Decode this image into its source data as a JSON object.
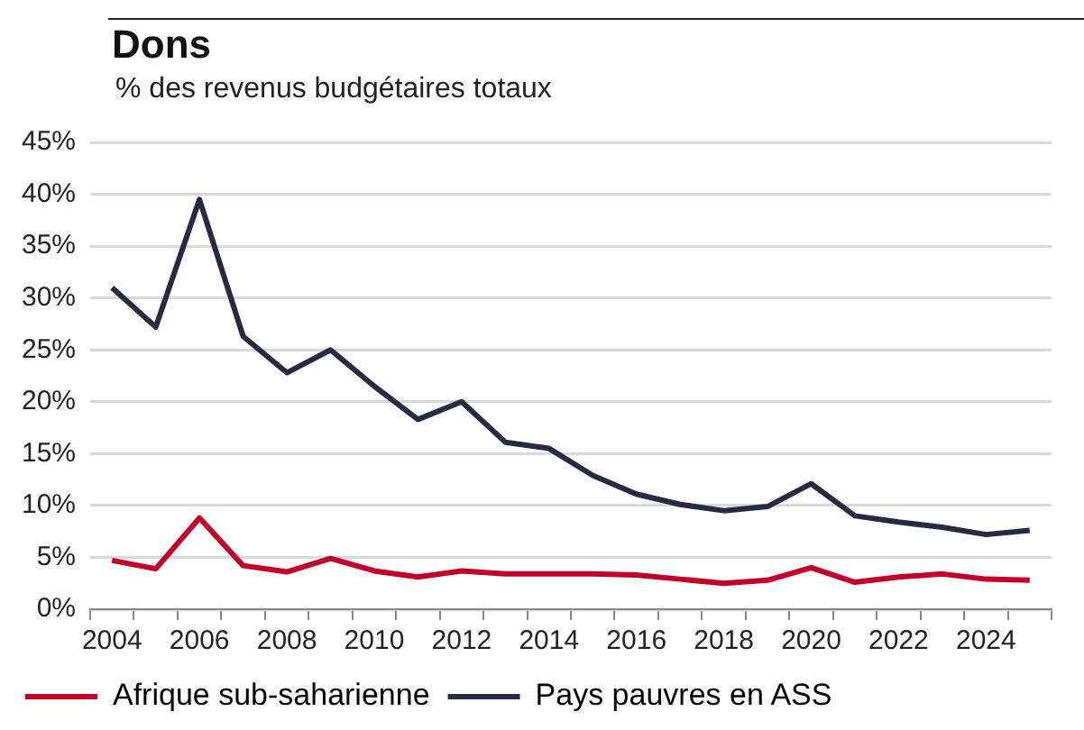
{
  "chart_data": {
    "type": "line",
    "title": "Dons",
    "subtitle": "% des revenus budgétaires totaux",
    "categories": [
      "2004",
      null,
      "2006",
      null,
      "2008",
      null,
      "2010",
      null,
      "2012",
      null,
      "2014",
      null,
      "2016",
      null,
      "2018",
      null,
      "2020",
      null,
      "2022",
      null,
      "2024",
      null
    ],
    "series": [
      {
        "name": "Afrique sub-saharienne",
        "color": "#c0002a",
        "values": [
          4.7,
          3.9,
          8.8,
          4.2,
          3.6,
          4.9,
          3.7,
          3.1,
          3.7,
          3.4,
          3.4,
          3.4,
          3.3,
          2.9,
          2.5,
          2.8,
          4.0,
          2.6,
          3.1,
          3.4,
          2.9,
          2.8
        ]
      },
      {
        "name": "Pays pauvres en ASS",
        "color": "#262b40",
        "values": [
          31,
          27.2,
          39.5,
          26.3,
          22.8,
          25,
          21.5,
          18.3,
          20,
          16.1,
          15.5,
          12.9,
          11.1,
          10.1,
          9.5,
          9.9,
          12.1,
          9,
          8.4,
          7.9,
          7.2,
          7.6
        ]
      }
    ],
    "ylim": [
      0,
      45
    ],
    "yticks": [
      {
        "value": 0,
        "label": "0%"
      },
      {
        "value": 5,
        "label": "5%"
      },
      {
        "value": 10,
        "label": "10%"
      },
      {
        "value": 15,
        "label": "15%"
      },
      {
        "value": 20,
        "label": "20%"
      },
      {
        "value": 25,
        "label": "25%"
      },
      {
        "value": 30,
        "label": "30%"
      },
      {
        "value": 35,
        "label": "35%"
      },
      {
        "value": 40,
        "label": "40%"
      },
      {
        "value": 45,
        "label": "45%"
      }
    ],
    "grid": "y",
    "legend": "bottom",
    "marker": "none",
    "line_style": "solid"
  }
}
